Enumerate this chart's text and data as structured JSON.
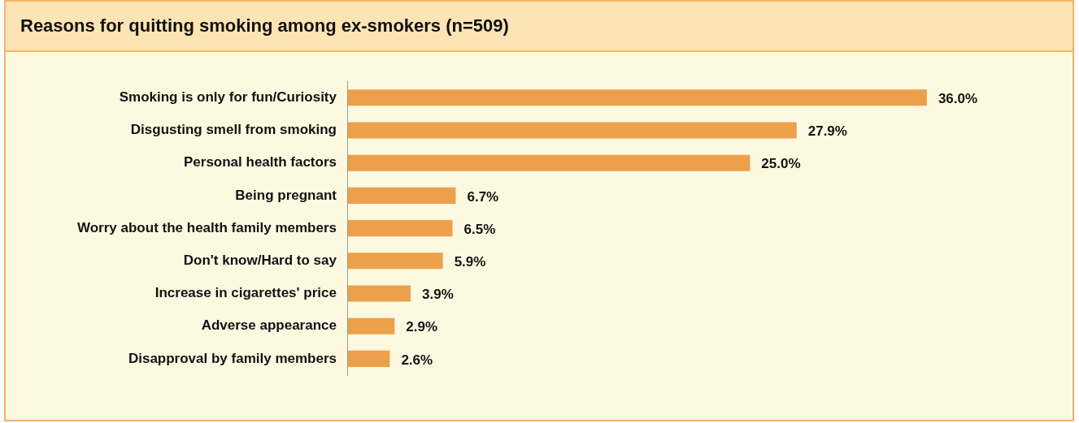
{
  "chart_data": {
    "type": "bar",
    "orientation": "horizontal",
    "title": "Reasons for quitting smoking among ex-smokers (n=509)",
    "categories": [
      "Smoking is only for fun/Curiosity",
      "Disgusting smell from smoking",
      "Personal health factors",
      "Being pregnant",
      "Worry about the health family members",
      "Don't know/Hard to say",
      "Increase in cigarettes' price",
      "Adverse appearance",
      "Disapproval by family members"
    ],
    "values": [
      36.0,
      27.9,
      25.0,
      6.7,
      6.5,
      5.9,
      3.9,
      2.9,
      2.6
    ],
    "value_labels": [
      "36.0%",
      "27.9%",
      "25.0%",
      "6.7%",
      "6.5%",
      "5.9%",
      "3.9%",
      "2.9%",
      "2.6%"
    ],
    "color": "#eda04a",
    "tick_labels": "y"
  }
}
